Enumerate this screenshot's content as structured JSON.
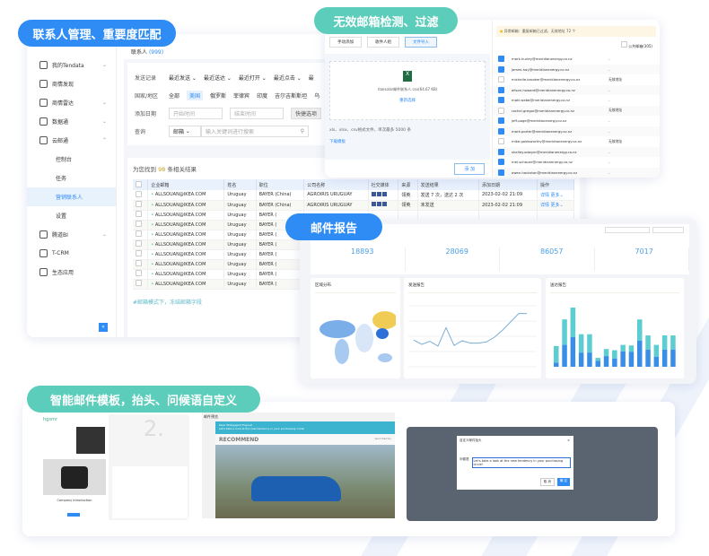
{
  "labels": {
    "contacts": "联系人管理、重要度匹配",
    "invalid": "无效邮箱检测、过滤",
    "report": "邮件报告",
    "template": "智能邮件模板，抬头、问候语自定义"
  },
  "sidebar": {
    "items": [
      {
        "label": "我的Tendata",
        "icon": "home-icon",
        "chevron": "⌄"
      },
      {
        "label": "商情发现",
        "icon": "search-icon",
        "chevron": ""
      },
      {
        "label": "商情雷达",
        "icon": "radar-icon",
        "chevron": "⌄"
      },
      {
        "label": "数据通",
        "icon": "chart-icon",
        "chevron": "⌄"
      },
      {
        "label": "云邮通",
        "icon": "mail-icon",
        "chevron": "⌃"
      }
    ],
    "sub_items": [
      "控制台",
      "任务",
      "营销联系人",
      "设置"
    ],
    "items2": [
      {
        "label": "腾道BI",
        "icon": "bi-icon",
        "chevron": "⌄"
      },
      {
        "label": "T-CRM",
        "icon": "crm-icon",
        "chevron": ""
      },
      {
        "label": "生态应用",
        "icon": "apps-icon",
        "chevron": ""
      }
    ],
    "collapse": "«"
  },
  "contacts": {
    "title": "联系人",
    "count": "(999)",
    "filters": {
      "send_label": "发送记录",
      "send_opts": [
        "最近发送 ⌄",
        "最近送达 ⌄",
        "最近打开 ⌄",
        "最近点击 ⌄",
        "最"
      ],
      "country_label": "国家/地区",
      "countries": [
        "全部",
        "美国",
        "俄罗斯",
        "菲律宾",
        "印度",
        "吉尔吉斯斯坦",
        "乌"
      ],
      "date_label": "添加日期",
      "start": "开始时间",
      "end": "结束时间",
      "quick": "快捷选项",
      "query_label": "查询",
      "query_type": "邮箱",
      "query_placeholder": "输入关键词进行搜索"
    },
    "result_pre": "为您找到",
    "result_count": "98",
    "result_post": "条相关结果",
    "columns": [
      "企业邮箱",
      "姓名",
      "职位",
      "公司名称",
      "社交媒体",
      "来源",
      "发送结果",
      "添加日期",
      "操作"
    ],
    "rows": [
      {
        "email": "ALLSOUAN@IKEA.COM",
        "name": "Uruguay",
        "title": "BAYER (China)",
        "company": "AGROIRIS URUGUAY",
        "source": "领英",
        "result": "发送 7 次，送达 2 次",
        "date": "2023-02-02 21:09",
        "detail": "详情",
        "more": "更多⌄"
      },
      {
        "email": "ALLSOUAN@IKEA.COM",
        "name": "Uruguay",
        "title": "BAYER (China)",
        "company": "AGROIRIS URUGUAY",
        "source": "领英",
        "result": "未发送",
        "date": "2023-02-02 21:09",
        "detail": "详情",
        "more": "更多⌄"
      },
      {
        "email": "ALLSOUAN@IKEA.COM",
        "name": "Uruguay",
        "title": "BAYER (",
        "company": "",
        "source": "",
        "result": "",
        "date": "",
        "detail": "",
        "more": ""
      },
      {
        "email": "ALLSOUAN@IKEA.COM",
        "name": "Uruguay",
        "title": "BAYER (",
        "company": "",
        "source": "",
        "result": "",
        "date": "",
        "detail": "",
        "more": ""
      },
      {
        "email": "ALLSOUAN@IKEA.COM",
        "name": "Uruguay",
        "title": "BAYER (",
        "company": "",
        "source": "",
        "result": "",
        "date": "",
        "detail": "",
        "more": ""
      },
      {
        "email": "ALLSOUAN@IKEA.COM",
        "name": "Uruguay",
        "title": "BAYER (",
        "company": "",
        "source": "",
        "result": "",
        "date": "",
        "detail": "",
        "more": ""
      },
      {
        "email": "ALLSOUAN@IKEA.COM",
        "name": "Uruguay",
        "title": "BAYER (",
        "company": "",
        "source": "",
        "result": "",
        "date": "",
        "detail": "",
        "more": ""
      },
      {
        "email": "ALLSOUAN@IKEA.COM",
        "name": "Uruguay",
        "title": "BAYER (",
        "company": "",
        "source": "",
        "result": "",
        "date": "",
        "detail": "",
        "more": ""
      },
      {
        "email": "ALLSOUAN@IKEA.COM",
        "name": "Uruguay",
        "title": "BAYER (",
        "company": "",
        "source": "",
        "result": "",
        "date": "",
        "detail": "",
        "more": ""
      },
      {
        "email": "ALLSOUAN@IKEA.COM",
        "name": "Uruguay",
        "title": "BAYER (",
        "company": "",
        "source": "",
        "result": "",
        "date": "",
        "detail": "",
        "more": ""
      }
    ],
    "footnote": "#邮箱模式下，冻结邮箱字段"
  },
  "import": {
    "tabs": [
      "手动添加",
      "收件人组",
      "文件导入"
    ],
    "file_name": "rlansolar邮件联系人.csv(64.67 KB)",
    "reselect": "重新选择",
    "hint": "xls、xlsx、csv格式文件，单次最多 5000 条",
    "download": "下载模板",
    "add": "添 加",
    "warning": "异常邮箱：重复邮箱已过滤，无效地址 72 个",
    "public_label": "公共邮箱(305)",
    "emails": [
      {
        "email": "mark.hurley@meridianenergy.co.nz",
        "status": "-",
        "checked": true
      },
      {
        "email": "james.hay@meridianenergy.co.nz",
        "status": "-",
        "checked": true
      },
      {
        "email": "michelle.brooker@meridianenergy.co.nz",
        "status": "无效地址",
        "checked": false
      },
      {
        "email": "alison.howard@meridianenergy.co.nz",
        "status": "-",
        "checked": true
      },
      {
        "email": "matt.webb@meridianenergy.co.nz",
        "status": "-",
        "checked": true
      },
      {
        "email": "rachel.gregor@meridianenergy.co.nz",
        "status": "无效地址",
        "checked": false
      },
      {
        "email": "jeff.page@meridianenergy.co.nz",
        "status": "-",
        "checked": true
      },
      {
        "email": "mark.porter@meridianenergy.co.nz",
        "status": "-",
        "checked": true
      },
      {
        "email": "mike.goldsworthy@meridianenergy.co.nz",
        "status": "无效地址",
        "checked": false
      },
      {
        "email": "shelley.odwyer@meridianenergy.co.nz",
        "status": "-",
        "checked": true
      },
      {
        "email": "mel.schauer@meridianenergy.co.nz",
        "status": "-",
        "checked": true
      },
      {
        "email": "owen.hackston@meridianenergy.co.nz",
        "status": "-",
        "checked": true
      }
    ]
  },
  "report": {
    "stats": [
      {
        "value": "18893"
      },
      {
        "value": "28069"
      },
      {
        "value": "86057"
      },
      {
        "value": "7017"
      }
    ],
    "panels": [
      "区域分布",
      "发送报告",
      "送达报告"
    ],
    "line_values": [
      0.45,
      0.38,
      0.43,
      0.35,
      0.66,
      0.36,
      0.44,
      0.4,
      0.4,
      0.42,
      0.5,
      0.62,
      0.76,
      0.9,
      0.9
    ],
    "bar_totals": [
      0.35,
      0.8,
      1.0,
      0.55,
      0.55,
      0.15,
      0.3,
      0.28,
      0.37,
      0.36,
      0.8,
      0.53,
      0.37,
      0.53,
      0.53
    ],
    "bar_lower": [
      0.07,
      0.37,
      0.5,
      0.24,
      0.24,
      0.1,
      0.18,
      0.14,
      0.26,
      0.25,
      0.44,
      0.29,
      0.17,
      0.29,
      0.29
    ],
    "colors": {
      "primary": "#3a8ee8",
      "secondary": "#5ccdd0",
      "map_hl": "#f0cc55"
    }
  },
  "template": {
    "brand": "hgsmr",
    "step": "2.",
    "section": "Company Introduction",
    "preview_title": "邮件预览",
    "greeting": "Dear Wilkypgard Fogruel",
    "greeting_sub": "Let's take a look at the new tendency in your purchasing circle!",
    "recommend": "RECOMMEND",
    "launched": "launched by",
    "dialog_title": "自定义邮件抬头",
    "dialog_label": "问候语",
    "dialog_value": "Let's take a look at the new tendency in your purchasing circle!",
    "cancel": "取 消",
    "ok": "确 定"
  }
}
